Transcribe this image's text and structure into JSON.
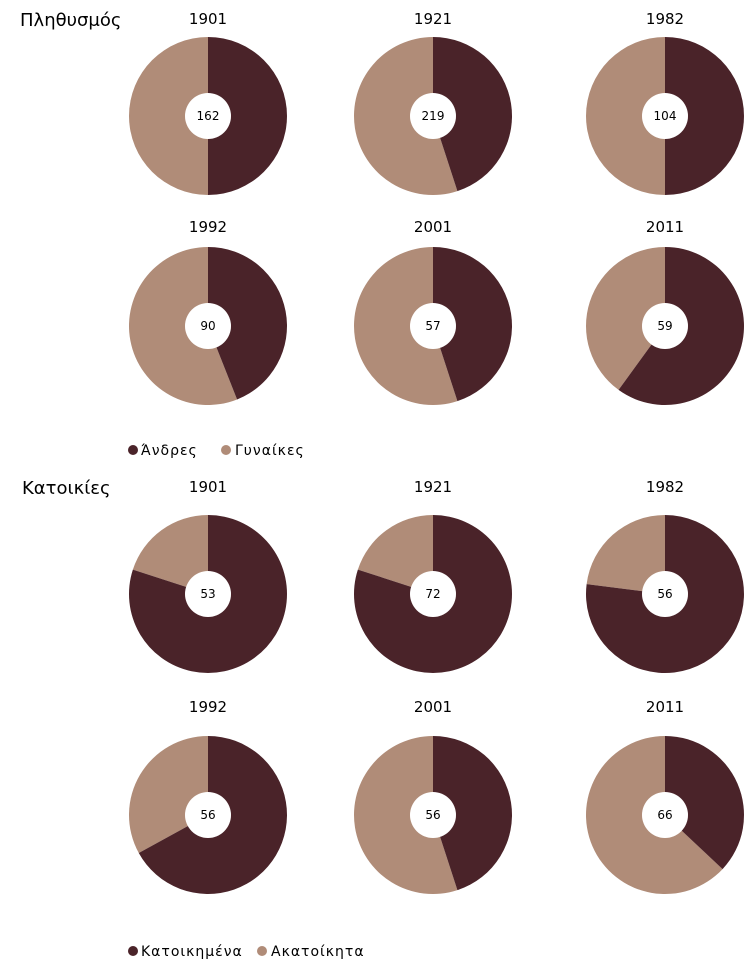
{
  "colors": {
    "primary": "#4a2329",
    "secondary": "#b08c78"
  },
  "chart_data": [
    {
      "type": "pie",
      "title": "Πληθυσμός",
      "legend": {
        "primary": "Άνδρες",
        "secondary": "Γυναίκες"
      },
      "charts": [
        {
          "year": "1901",
          "total": "162",
          "primary_share": 0.5
        },
        {
          "year": "1921",
          "total": "219",
          "primary_share": 0.45
        },
        {
          "year": "1982",
          "total": "104",
          "primary_share": 0.5
        },
        {
          "year": "1992",
          "total": "90",
          "primary_share": 0.44
        },
        {
          "year": "2001",
          "total": "57",
          "primary_share": 0.45
        },
        {
          "year": "2011",
          "total": "59",
          "primary_share": 0.6
        }
      ]
    },
    {
      "type": "pie",
      "title": "Κατοικίες",
      "legend": {
        "primary": "Κατοικημένα",
        "secondary": "Ακατοίκητα"
      },
      "charts": [
        {
          "year": "1901",
          "total": "53",
          "primary_share": 0.8
        },
        {
          "year": "1921",
          "total": "72",
          "primary_share": 0.8
        },
        {
          "year": "1982",
          "total": "56",
          "primary_share": 0.77
        },
        {
          "year": "1992",
          "total": "56",
          "primary_share": 0.67
        },
        {
          "year": "2001",
          "total": "56",
          "primary_share": 0.45
        },
        {
          "year": "2011",
          "total": "66",
          "primary_share": 0.37
        }
      ]
    }
  ]
}
